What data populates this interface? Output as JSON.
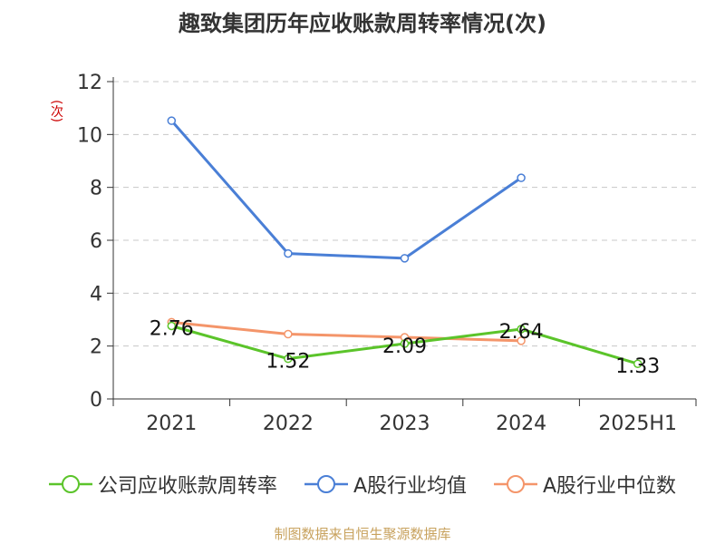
{
  "chart_data": {
    "type": "line",
    "title": "趣致集团历年应收账款周转率情况(次)",
    "ylabel": "(次)",
    "xlabel": "",
    "categories": [
      "2021",
      "2022",
      "2023",
      "2024",
      "2025H1"
    ],
    "ylim": [
      0,
      12
    ],
    "yticks": [
      "0",
      "2",
      "4",
      "6",
      "8",
      "10",
      "12"
    ],
    "grid": true,
    "legend_position": "bottom",
    "series": [
      {
        "name": "公司应收账款周转率",
        "values": [
          2.76,
          1.52,
          2.09,
          2.64,
          1.33
        ],
        "labels": [
          "2.76",
          "1.52",
          "2.09",
          "2.64",
          "1.33"
        ],
        "color": "#5bc42a"
      },
      {
        "name": "A股行业均值",
        "values": [
          10.52,
          5.5,
          5.32,
          8.36,
          null
        ],
        "color": "#4a7fd6"
      },
      {
        "name": "A股行业中位数",
        "values": [
          2.9,
          2.45,
          2.33,
          2.2,
          null
        ],
        "color": "#f4956a"
      }
    ]
  },
  "source": "制图数据来自恒生聚源数据库"
}
